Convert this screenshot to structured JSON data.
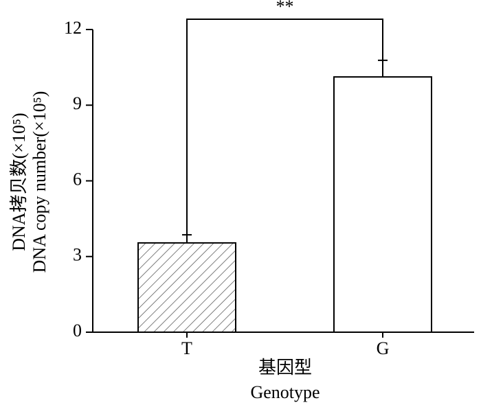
{
  "chart_data": {
    "type": "bar",
    "y_label": [
      "DNA拷贝数(×10⁵)",
      "DNA copy number(×10⁵)"
    ],
    "x_label": [
      "基因型",
      "Genotype"
    ],
    "categories": [
      "T",
      "G"
    ],
    "values": [
      3.54,
      10.12
    ],
    "errors": [
      0.32,
      0.66
    ],
    "bar_styles": [
      "hatched",
      "plain"
    ],
    "color": "#000000",
    "ylim": [
      0,
      12
    ],
    "yticks": [
      0,
      3,
      6,
      9,
      12
    ],
    "significance_label": "**"
  }
}
